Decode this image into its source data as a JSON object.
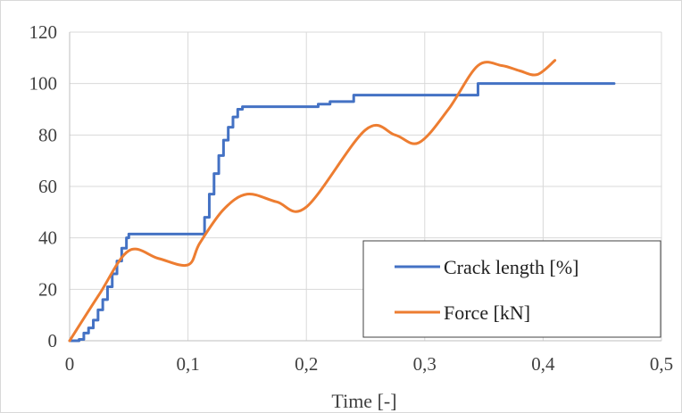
{
  "chart_data": {
    "type": "line",
    "xlabel": "Time [-]",
    "ylabel": "",
    "xlim": [
      0,
      0.5
    ],
    "ylim": [
      0,
      120
    ],
    "x_ticks": [
      "0",
      "0,1",
      "0,2",
      "0,3",
      "0,4",
      "0,5"
    ],
    "y_ticks": [
      "0",
      "20",
      "40",
      "60",
      "80",
      "100",
      "120"
    ],
    "grid": true,
    "legend_position": "bottom-right",
    "series": [
      {
        "name": "Crack length [%]",
        "color": "#4472C4",
        "style": "step",
        "x": [
          0,
          0.008,
          0.012,
          0.016,
          0.02,
          0.024,
          0.028,
          0.032,
          0.036,
          0.04,
          0.044,
          0.048,
          0.05,
          0.11,
          0.114,
          0.118,
          0.122,
          0.126,
          0.13,
          0.134,
          0.138,
          0.142,
          0.146,
          0.15,
          0.2,
          0.21,
          0.22,
          0.24,
          0.32,
          0.345,
          0.46
        ],
        "y": [
          0,
          0.5,
          3,
          5,
          8,
          12,
          16,
          21,
          26,
          31,
          36,
          40,
          41.5,
          41.5,
          48,
          57,
          65,
          72,
          78,
          83,
          87,
          90,
          91,
          91,
          91,
          92,
          93,
          95.5,
          95.5,
          100,
          100
        ]
      },
      {
        "name": "Force [kN]",
        "color": "#ED7D31",
        "style": "smooth",
        "x": [
          0,
          0.025,
          0.05,
          0.075,
          0.1,
          0.11,
          0.13,
          0.15,
          0.175,
          0.2,
          0.25,
          0.275,
          0.295,
          0.32,
          0.345,
          0.365,
          0.38,
          0.395,
          0.41
        ],
        "y": [
          0,
          18,
          35,
          32,
          29.5,
          38,
          51,
          57,
          54,
          52,
          82,
          80,
          77,
          90,
          107,
          107,
          105,
          103.5,
          109
        ]
      }
    ]
  }
}
